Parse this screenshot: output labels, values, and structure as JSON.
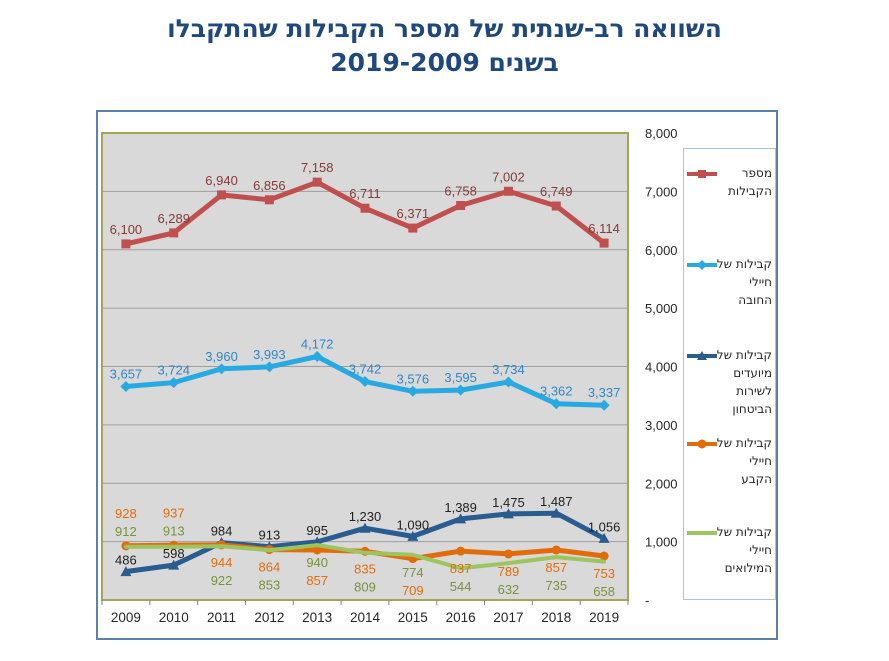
{
  "title": {
    "line1": "השוואה רב-שנתית של מספר הקבילות שהתקבלו",
    "line2": "בשנים 2019-2009"
  },
  "colors": {
    "title": "#1F497E",
    "frame_border": "#5B82A8",
    "legend_border": "#A9C4DE",
    "plot_background": "#D9D9D9",
    "plot_border": "#A6A457",
    "gridline": "#9E9E9E",
    "axis_text": "#262626"
  },
  "chart_data": {
    "type": "line",
    "title": "השוואה רב-שנתית של מספר הקבילות שהתקבלו בשנים 2009-2019",
    "categories": [
      "2009",
      "2010",
      "2011",
      "2012",
      "2013",
      "2014",
      "2015",
      "2016",
      "2017",
      "2018",
      "2019"
    ],
    "xlabel": "",
    "ylabel": "",
    "ylim": [
      0,
      8000
    ],
    "y_tick_step": 1000,
    "y_tick_labels": [
      "8,000",
      "7,000",
      "6,000",
      "5,000",
      "4,000",
      "3,000",
      "2,000",
      "1,000",
      "-"
    ],
    "grid": true,
    "legend_position": "right",
    "series": [
      {
        "name": "מספר הקבילות",
        "legend_lines": [
          "מספר",
          "הקבילות"
        ],
        "color": "#C0504D",
        "label_color": "#843C39",
        "marker": "square",
        "line_width": 5,
        "values": [
          6100,
          6289,
          6940,
          6856,
          7158,
          6711,
          6371,
          6758,
          7002,
          6749,
          6114
        ]
      },
      {
        "name": "קבילות של חיילי החובה",
        "legend_lines": [
          "קבילות של",
          "חיילי",
          "החובה"
        ],
        "color": "#27AAE1",
        "label_color": "#2F88C6",
        "marker": "diamond",
        "line_width": 5,
        "values": [
          3657,
          3724,
          3960,
          3993,
          4172,
          3742,
          3576,
          3595,
          3734,
          3362,
          3337
        ]
      },
      {
        "name": "קבילות של מיועדים לשירות הביטחון",
        "legend_lines": [
          "קבילות של",
          "מיועדים",
          "לשירות",
          "הביטחון"
        ],
        "color": "#295C8F",
        "label_color": "#1F1F1F",
        "marker": "triangle",
        "line_width": 5,
        "values": [
          486,
          598,
          984,
          913,
          995,
          1230,
          1090,
          1389,
          1475,
          1487,
          1056
        ]
      },
      {
        "name": "קבילות של חיילי הקבע",
        "legend_lines": [
          "קבילות של",
          "חיילי",
          "הקבע"
        ],
        "color": "#E36C0A",
        "label_color": "#E36C0A",
        "marker": "circle",
        "line_width": 5,
        "values": [
          928,
          937,
          944,
          864,
          857,
          835,
          709,
          837,
          789,
          857,
          753
        ]
      },
      {
        "name": "קבילות של חיילי המילואים",
        "legend_lines": [
          "קבילות של",
          "חיילי",
          "המילואים"
        ],
        "color": "#9CC45F",
        "label_color": "#77933C",
        "marker": "none",
        "line_width": 4,
        "values": [
          912,
          913,
          922,
          853,
          940,
          809,
          774,
          544,
          632,
          735,
          658
        ]
      }
    ]
  }
}
